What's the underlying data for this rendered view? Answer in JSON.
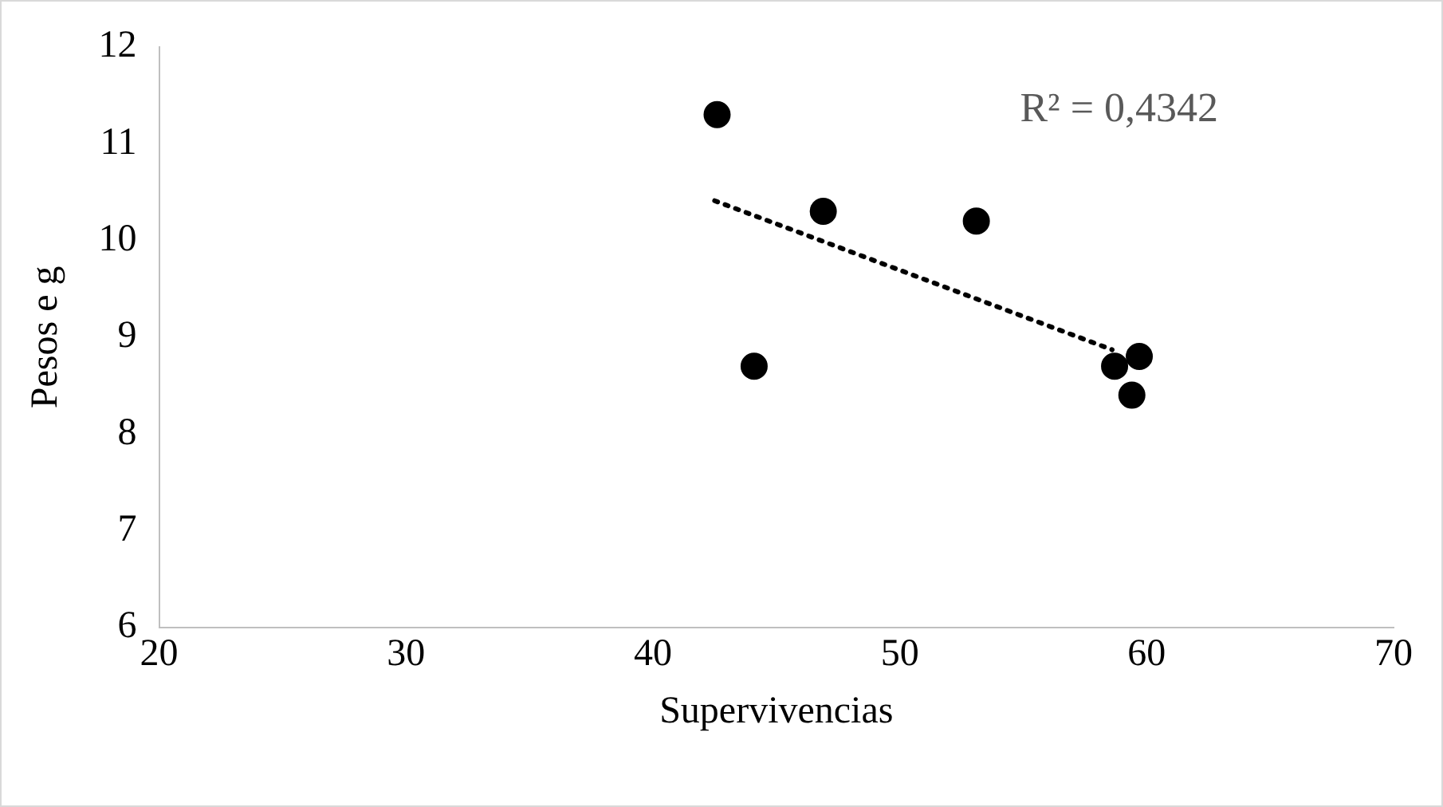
{
  "chart_data": {
    "type": "scatter",
    "xlabel": "Supervivencias",
    "ylabel": "Pesos e g",
    "xlim": [
      20,
      70
    ],
    "xticks": [
      20,
      30,
      40,
      50,
      60,
      70
    ],
    "ylim": [
      6,
      12
    ],
    "yticks": [
      6,
      7,
      8,
      9,
      10,
      11,
      12
    ],
    "grid": false,
    "legend": false,
    "marker": "circle",
    "annotations": [
      "R² = 0,4342"
    ],
    "series": [
      {
        "color": "#000000",
        "x": [
          42.6,
          46.9,
          53.1,
          44.1,
          58.7,
          59.7,
          59.4
        ],
        "values": [
          11.3,
          10.3,
          10.2,
          8.7,
          8.7,
          8.8,
          8.4
        ]
      },
      {
        "type": "line",
        "color": "#000000",
        "line_style": "dotted",
        "marker": "none",
        "x": [
          42.5,
          58.6
        ],
        "values": [
          10.41,
          8.87
        ]
      }
    ]
  }
}
